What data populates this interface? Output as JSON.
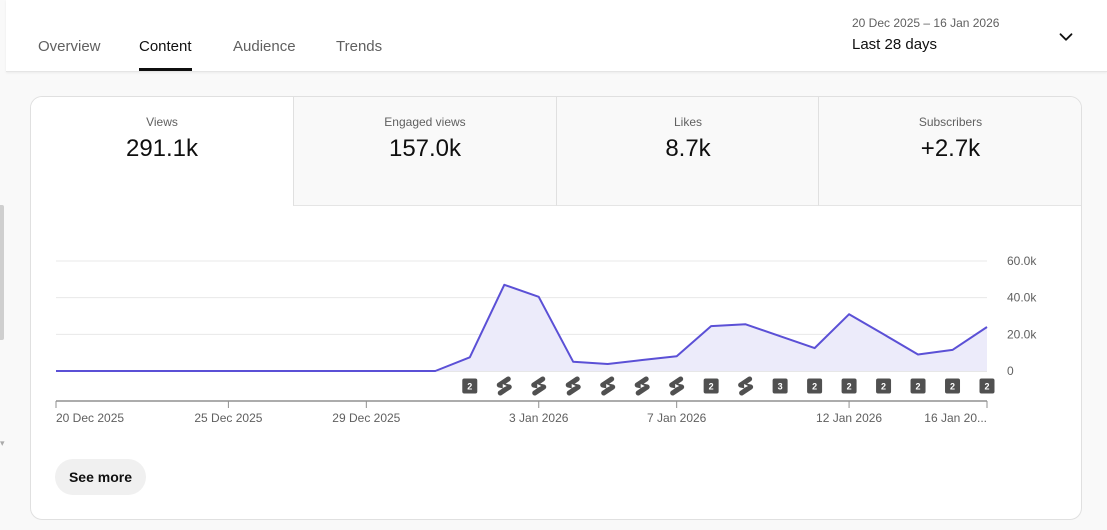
{
  "tabs": [
    {
      "label": "Overview",
      "active": false
    },
    {
      "label": "Content",
      "active": true
    },
    {
      "label": "Audience",
      "active": false
    },
    {
      "label": "Trends",
      "active": false
    }
  ],
  "date_range": {
    "range": "20 Dec 2025 – 16 Jan 2026",
    "label": "Last 28 days"
  },
  "metrics": [
    {
      "label": "Views",
      "value": "291.1k",
      "active": true
    },
    {
      "label": "Engaged views",
      "value": "157.0k",
      "active": false
    },
    {
      "label": "Likes",
      "value": "8.7k",
      "active": false
    },
    {
      "label": "Subscribers",
      "value": "+2.7k",
      "active": false
    }
  ],
  "see_more_label": "See more",
  "colors": {
    "line": "#5b50d6",
    "fill": "#ecebfa",
    "marker_bg": "#505050"
  },
  "chart_data": {
    "type": "area",
    "x_start": "20 Dec 2025",
    "x": [
      "20 Dec",
      "21 Dec",
      "22 Dec",
      "23 Dec",
      "24 Dec",
      "25 Dec",
      "26 Dec",
      "27 Dec",
      "28 Dec",
      "29 Dec",
      "30 Dec",
      "31 Dec",
      "1 Jan",
      "2 Jan",
      "3 Jan",
      "4 Jan",
      "5 Jan",
      "6 Jan",
      "7 Jan",
      "8 Jan",
      "9 Jan",
      "10 Jan",
      "11 Jan",
      "12 Jan",
      "13 Jan",
      "14 Jan",
      "15 Jan",
      "16 Jan"
    ],
    "values": [
      0,
      0,
      0,
      0,
      0,
      0,
      0,
      0,
      0,
      0,
      0,
      0,
      7500,
      47000,
      40500,
      5000,
      3800,
      6000,
      8000,
      24500,
      25500,
      19000,
      12500,
      31000,
      20000,
      9000,
      11500,
      24000
    ],
    "ylim": [
      0,
      60000
    ],
    "yticks": [
      0,
      20000,
      40000,
      60000
    ],
    "ytick_labels": [
      "0",
      "20.0k",
      "40.0k",
      "60.0k"
    ],
    "xtick_labels": [
      {
        "index": 0,
        "label": "20 Dec 2025"
      },
      {
        "index": 5,
        "label": "25 Dec 2025"
      },
      {
        "index": 9,
        "label": "29 Dec 2025"
      },
      {
        "index": 14,
        "label": "3 Jan 2026"
      },
      {
        "index": 18,
        "label": "7 Jan 2026"
      },
      {
        "index": 23,
        "label": "12 Jan 2026"
      },
      {
        "index": 27,
        "label": "16 Jan 20..."
      }
    ],
    "markers": [
      {
        "index": 12,
        "kind": "count",
        "label": "2"
      },
      {
        "index": 13,
        "kind": "short",
        "label": ""
      },
      {
        "index": 14,
        "kind": "short",
        "label": ""
      },
      {
        "index": 15,
        "kind": "short",
        "label": ""
      },
      {
        "index": 16,
        "kind": "short",
        "label": ""
      },
      {
        "index": 17,
        "kind": "short",
        "label": ""
      },
      {
        "index": 18,
        "kind": "short",
        "label": ""
      },
      {
        "index": 19,
        "kind": "count",
        "label": "2"
      },
      {
        "index": 20,
        "kind": "short",
        "label": ""
      },
      {
        "index": 21,
        "kind": "count",
        "label": "3"
      },
      {
        "index": 22,
        "kind": "count",
        "label": "2"
      },
      {
        "index": 23,
        "kind": "count",
        "label": "2"
      },
      {
        "index": 24,
        "kind": "count",
        "label": "2"
      },
      {
        "index": 25,
        "kind": "count",
        "label": "2"
      },
      {
        "index": 26,
        "kind": "count",
        "label": "2"
      },
      {
        "index": 27,
        "kind": "count",
        "label": "2"
      }
    ],
    "grid": true
  }
}
